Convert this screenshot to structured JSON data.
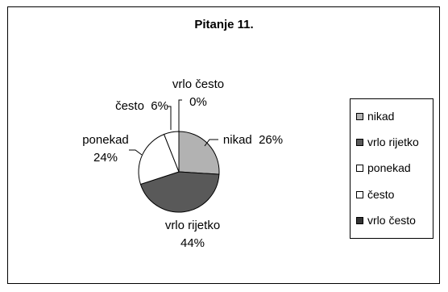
{
  "chart_data": {
    "type": "pie",
    "title": "Pitanje 11.",
    "slices": [
      {
        "label": "nikad",
        "value": 26,
        "color": "#b2b2b2",
        "text_lines": [
          "nikad  26%"
        ]
      },
      {
        "label": "vrlo rijetko",
        "value": 44,
        "color": "#595959",
        "text_lines": [
          "vrlo rijetko",
          "44%"
        ]
      },
      {
        "label": "ponekad",
        "value": 24,
        "color": "#ffffff",
        "text_lines": [
          "ponekad",
          "24%"
        ]
      },
      {
        "label": "često",
        "value": 6,
        "color": "#ffffff",
        "text_lines": [
          "često  6%"
        ]
      },
      {
        "label": "vrlo često",
        "value": 0,
        "color": "#333333",
        "text_lines": [
          "vrlo često",
          "0%"
        ]
      }
    ],
    "legend": {
      "position": "right",
      "entries": [
        "nikad",
        "vrlo rijetko",
        "ponekad",
        "često",
        "vrlo često"
      ]
    }
  }
}
